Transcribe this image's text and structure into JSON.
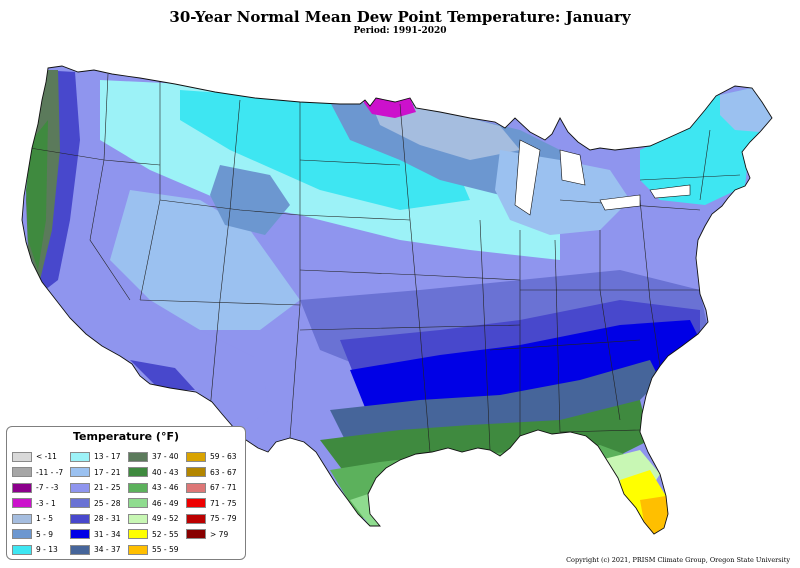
{
  "title": "30-Year Normal Mean Dew Point Temperature: January",
  "subtitle": "Period: 1991-2020",
  "copyright": "Copyright (c) 2021, PRISM Climate Group, Oregon State University",
  "legend": {
    "title": "Temperature (°F)",
    "items": [
      {
        "label": "< -11",
        "color": "#d9d9d9"
      },
      {
        "label": "-11 - -7",
        "color": "#a6a6a6"
      },
      {
        "label": "-7 - -3",
        "color": "#8b008b"
      },
      {
        "label": "-3 - 1",
        "color": "#cc11cc"
      },
      {
        "label": "1 - 5",
        "color": "#a5bddf"
      },
      {
        "label": "5 - 9",
        "color": "#6c97d0"
      },
      {
        "label": "9 - 13",
        "color": "#3ee6f2"
      },
      {
        "label": "13 - 17",
        "color": "#9cf2f7"
      },
      {
        "label": "17 - 21",
        "color": "#9bc1f0"
      },
      {
        "label": "21 - 25",
        "color": "#8f95ee"
      },
      {
        "label": "25 - 28",
        "color": "#6a72d4"
      },
      {
        "label": "28 - 31",
        "color": "#4848cc"
      },
      {
        "label": "31 - 34",
        "color": "#0000e6"
      },
      {
        "label": "34 - 37",
        "color": "#46659a"
      },
      {
        "label": "37 - 40",
        "color": "#5b7a5b"
      },
      {
        "label": "40 - 43",
        "color": "#3f8a3f"
      },
      {
        "label": "43 - 46",
        "color": "#5cb15c"
      },
      {
        "label": "46 - 49",
        "color": "#8fdc8f"
      },
      {
        "label": "49 - 52",
        "color": "#c8f7b4"
      },
      {
        "label": "52 - 55",
        "color": "#ffff00"
      },
      {
        "label": "55 - 59",
        "color": "#ffbf00"
      },
      {
        "label": "59 - 63",
        "color": "#d9a300"
      },
      {
        "label": "63 - 67",
        "color": "#b38600"
      },
      {
        "label": "67 - 71",
        "color": "#dd7777"
      },
      {
        "label": "71 - 75",
        "color": "#ee0000"
      },
      {
        "label": "75 - 79",
        "color": "#bb0000"
      },
      {
        "label": "> 79",
        "color": "#880000"
      }
    ]
  }
}
